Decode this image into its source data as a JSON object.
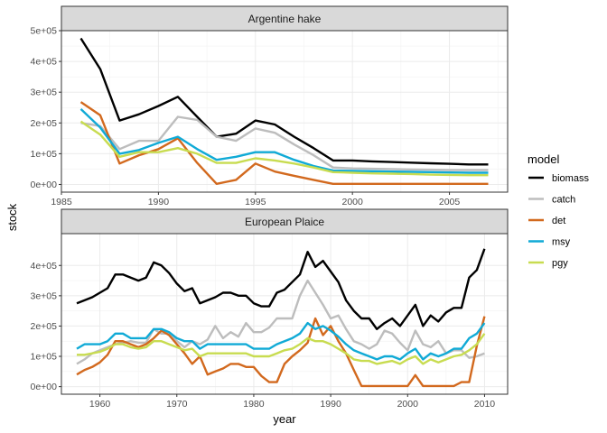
{
  "chart_data": {
    "type": "line",
    "xlabel": "year",
    "ylabel": "stock",
    "legend": {
      "title": "model",
      "position": "right",
      "entries": [
        {
          "name": "biomass",
          "color": "#000000"
        },
        {
          "name": "catch",
          "color": "#bdbdbd"
        },
        {
          "name": "det",
          "color": "#d2691e"
        },
        {
          "name": "msy",
          "color": "#10aad6"
        },
        {
          "name": "pgy",
          "color": "#c8dc50"
        }
      ]
    },
    "panels": [
      {
        "title": "Argentine hake",
        "xlim": [
          1985,
          2008
        ],
        "ylim": [
          -25000,
          500000
        ],
        "xticks": [
          1985,
          1990,
          1995,
          2000,
          2005
        ],
        "yticks": [
          0,
          100000,
          200000,
          300000,
          400000,
          500000
        ],
        "ytick_labels": [
          "0e+00",
          "1e+05",
          "2e+05",
          "3e+05",
          "4e+05",
          "5e+05"
        ],
        "x": [
          1986,
          1987,
          1988,
          1989,
          1990,
          1991,
          1992,
          1993,
          1994,
          1995,
          1996,
          1997,
          1998,
          1999,
          2000,
          2001,
          2002,
          2003,
          2004,
          2005,
          2006,
          2007
        ],
        "series": [
          {
            "name": "biomass",
            "values": [
              475000,
              375000,
              208000,
              228000,
              255000,
              285000,
              220000,
              155000,
              165000,
              208000,
              195000,
              155000,
              118000,
              78000,
              78000,
              75000,
              73000,
              71000,
              69000,
              67000,
              65000,
              65000
            ]
          },
          {
            "name": "catch",
            "values": [
              200000,
              190000,
              115000,
              142000,
              142000,
              220000,
              210000,
              155000,
              142000,
              182000,
              168000,
              130000,
              95000,
              55000,
              52000,
              51000,
              50000,
              49000,
              48000,
              47000,
              47000,
              47000
            ]
          },
          {
            "name": "det",
            "values": [
              268000,
              225000,
              68000,
              95000,
              115000,
              150000,
              70000,
              2000,
              15000,
              68000,
              42000,
              28000,
              15000,
              2000,
              2000,
              2000,
              2000,
              2000,
              2000,
              2000,
              2000,
              2000
            ]
          },
          {
            "name": "msy",
            "values": [
              245000,
              185000,
              100000,
              112000,
              135000,
              155000,
              115000,
              80000,
              90000,
              105000,
              105000,
              80000,
              60000,
              45000,
              44000,
              43000,
              42000,
              41000,
              40000,
              39000,
              38000,
              38000
            ]
          },
          {
            "name": "pgy",
            "values": [
              205000,
              162000,
              90000,
              105000,
              105000,
              118000,
              100000,
              70000,
              70000,
              85000,
              78000,
              68000,
              55000,
              40000,
              38000,
              36000,
              35000,
              34000,
              32000,
              31000,
              30000,
              30000
            ]
          }
        ]
      },
      {
        "title": "European Plaice",
        "xlim": [
          1955,
          2013
        ],
        "ylim": [
          -25000,
          505000
        ],
        "xticks": [
          1960,
          1970,
          1980,
          1990,
          2000,
          2010
        ],
        "yticks": [
          0,
          100000,
          200000,
          300000,
          400000
        ],
        "ytick_labels": [
          "0e+00",
          "1e+05",
          "2e+05",
          "3e+05",
          "4e+05"
        ],
        "x": [
          1957,
          1958,
          1959,
          1960,
          1961,
          1962,
          1963,
          1964,
          1965,
          1966,
          1967,
          1968,
          1969,
          1970,
          1971,
          1972,
          1973,
          1974,
          1975,
          1976,
          1977,
          1978,
          1979,
          1980,
          1981,
          1982,
          1983,
          1984,
          1985,
          1986,
          1987,
          1988,
          1989,
          1990,
          1991,
          1992,
          1993,
          1994,
          1995,
          1996,
          1997,
          1998,
          1999,
          2000,
          2001,
          2002,
          2003,
          2004,
          2005,
          2006,
          2007,
          2008,
          2009,
          2010
        ],
        "series": [
          {
            "name": "biomass",
            "values": [
              275000,
              285000,
              295000,
              310000,
              325000,
              370000,
              370000,
              360000,
              350000,
              360000,
              410000,
              400000,
              375000,
              340000,
              315000,
              325000,
              275000,
              285000,
              295000,
              310000,
              310000,
              300000,
              300000,
              275000,
              265000,
              265000,
              310000,
              320000,
              345000,
              370000,
              445000,
              395000,
              415000,
              380000,
              345000,
              285000,
              250000,
              225000,
              225000,
              190000,
              210000,
              225000,
              200000,
              235000,
              270000,
              200000,
              235000,
              215000,
              245000,
              260000,
              260000,
              360000,
              385000,
              455000
            ]
          },
          {
            "name": "catch",
            "values": [
              75000,
              90000,
              110000,
              120000,
              130000,
              140000,
              145000,
              150000,
              145000,
              145000,
              190000,
              175000,
              175000,
              150000,
              130000,
              150000,
              140000,
              155000,
              200000,
              160000,
              180000,
              165000,
              210000,
              180000,
              180000,
              195000,
              225000,
              225000,
              225000,
              300000,
              350000,
              310000,
              270000,
              225000,
              235000,
              190000,
              150000,
              140000,
              125000,
              140000,
              185000,
              175000,
              145000,
              120000,
              185000,
              140000,
              130000,
              150000,
              110000,
              120000,
              120000,
              95000,
              100000,
              110000
            ]
          },
          {
            "name": "det",
            "values": [
              40000,
              55000,
              65000,
              80000,
              105000,
              150000,
              150000,
              140000,
              130000,
              140000,
              160000,
              185000,
              170000,
              140000,
              110000,
              75000,
              100000,
              40000,
              50000,
              60000,
              75000,
              75000,
              65000,
              65000,
              35000,
              15000,
              15000,
              75000,
              100000,
              120000,
              145000,
              225000,
              170000,
              200000,
              150000,
              110000,
              55000,
              2000,
              2000,
              2000,
              2000,
              2000,
              2000,
              2000,
              38000,
              2000,
              2000,
              2000,
              2000,
              2000,
              15000,
              15000,
              135000,
              232000
            ]
          },
          {
            "name": "msy",
            "values": [
              125000,
              140000,
              140000,
              140000,
              150000,
              175000,
              175000,
              160000,
              160000,
              160000,
              190000,
              190000,
              180000,
              160000,
              150000,
              150000,
              125000,
              140000,
              140000,
              140000,
              140000,
              140000,
              140000,
              125000,
              125000,
              125000,
              140000,
              150000,
              160000,
              175000,
              210000,
              190000,
              200000,
              185000,
              165000,
              140000,
              120000,
              110000,
              100000,
              90000,
              100000,
              100000,
              90000,
              110000,
              125000,
              90000,
              110000,
              100000,
              110000,
              125000,
              125000,
              160000,
              175000,
              210000
            ]
          },
          {
            "name": "pgy",
            "values": [
              105000,
              105000,
              110000,
              115000,
              125000,
              140000,
              140000,
              130000,
              125000,
              130000,
              150000,
              150000,
              140000,
              130000,
              120000,
              125000,
              100000,
              110000,
              110000,
              110000,
              110000,
              110000,
              110000,
              100000,
              100000,
              100000,
              110000,
              120000,
              125000,
              140000,
              160000,
              150000,
              150000,
              140000,
              125000,
              110000,
              90000,
              85000,
              85000,
              75000,
              80000,
              85000,
              75000,
              90000,
              100000,
              75000,
              90000,
              80000,
              90000,
              100000,
              105000,
              120000,
              140000,
              175000
            ]
          }
        ]
      }
    ]
  }
}
